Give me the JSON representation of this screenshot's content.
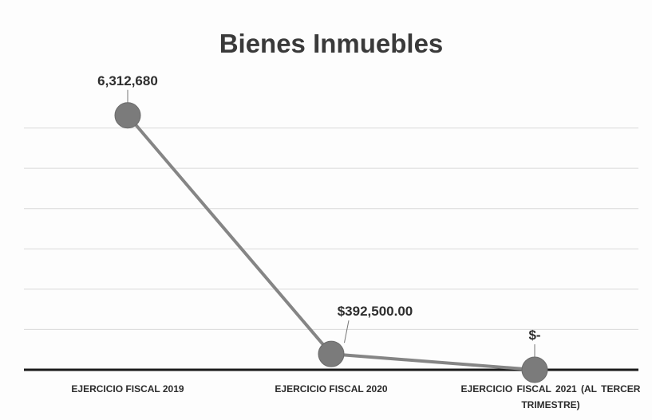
{
  "chart_data": {
    "type": "line",
    "title": "Bienes Inmuebles",
    "categories": [
      "EJERCICIO FISCAL 2019",
      "EJERCICIO FISCAL 2020",
      "EJERCICIO FISCAL 2021 (AL TERCER TRIMESTRE)"
    ],
    "values": [
      6312680,
      392500,
      0
    ],
    "value_labels": [
      "6,312,680",
      "$392,500.00",
      "$-"
    ],
    "color": "#858585",
    "ylim": [
      0,
      7000000
    ],
    "yticks": [
      0,
      1000000,
      2000000,
      3000000,
      4000000,
      5000000,
      6000000
    ],
    "grid": true
  }
}
